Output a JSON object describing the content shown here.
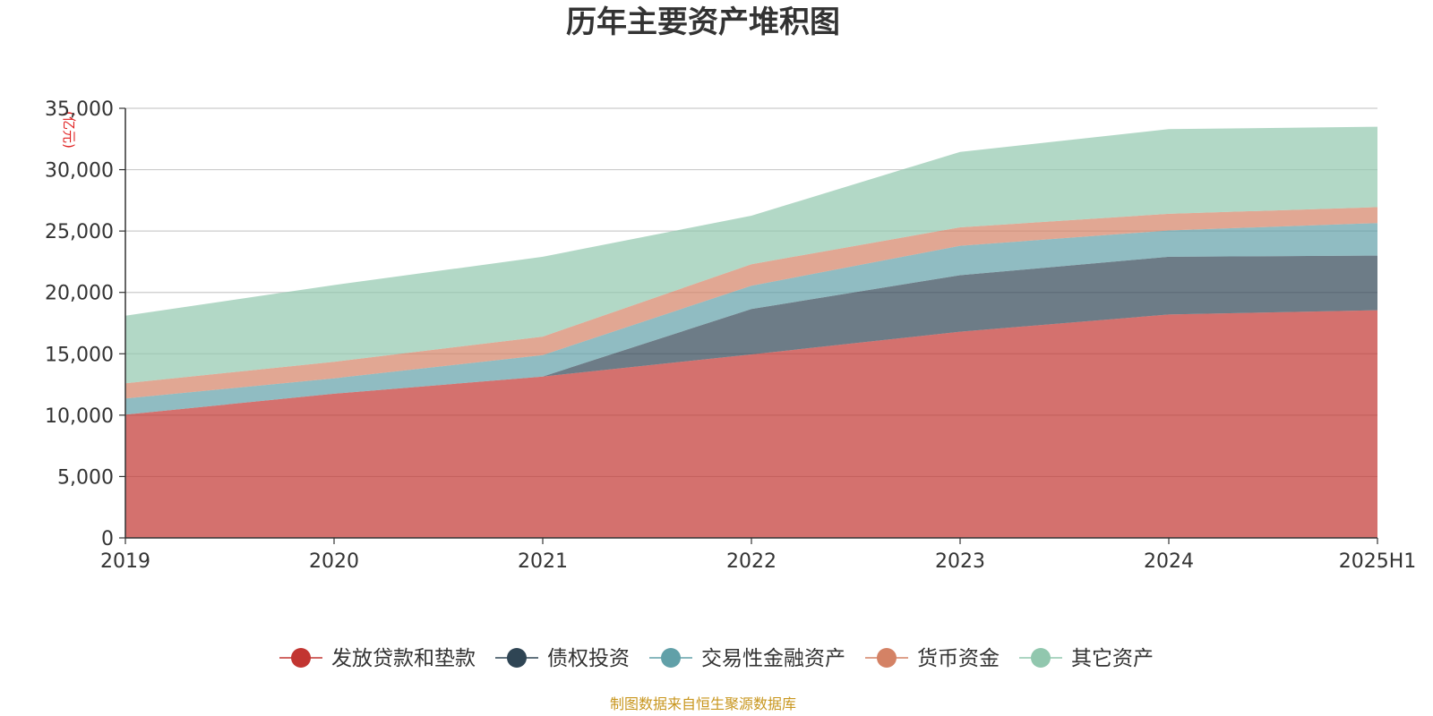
{
  "chart_data": {
    "type": "area",
    "stacked": true,
    "title": "历年主要资产堆积图",
    "ylabel": "(亿元)",
    "xlabel": "",
    "categories": [
      "2019",
      "2020",
      "2021",
      "2022",
      "2023",
      "2024",
      "2025H1"
    ],
    "ylim": [
      0,
      35000
    ],
    "yticks": [
      "0",
      "5,000",
      "10,000",
      "15,000",
      "20,000",
      "25,000",
      "30,000",
      "35,000"
    ],
    "grid": true,
    "legend_position": "bottom",
    "series": [
      {
        "name": "发放贷款和垫款",
        "color": "#c23531",
        "values": [
          10050,
          11750,
          13150,
          14950,
          16800,
          18200,
          18550
        ]
      },
      {
        "name": "债权投资",
        "color": "#2f4554",
        "values": [
          0,
          0,
          0,
          3700,
          4600,
          4700,
          4450
        ]
      },
      {
        "name": "交易性金融资产",
        "color": "#61a0a8",
        "values": [
          1300,
          1250,
          1750,
          1900,
          2400,
          2150,
          2650
        ]
      },
      {
        "name": "货币资金",
        "color": "#d48265",
        "values": [
          1250,
          1350,
          1500,
          1750,
          1500,
          1350,
          1300
        ]
      },
      {
        "name": "其它资产",
        "color": "#91c7ae",
        "values": [
          5500,
          6250,
          6500,
          3950,
          6150,
          6900,
          6550
        ]
      }
    ],
    "source": "制图数据来自恒生聚源数据库"
  }
}
